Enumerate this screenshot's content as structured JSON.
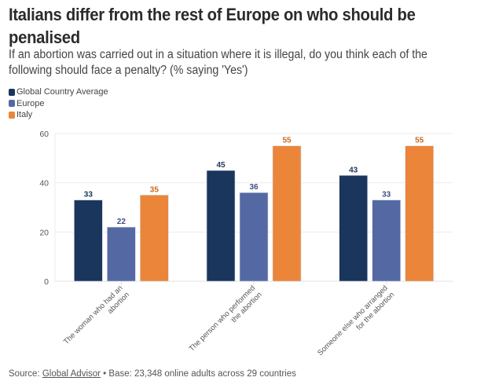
{
  "title": "Italians differ from the rest of Europe on who should be penalised",
  "subtitle": "If an abortion was carried out in a situation where it is illegal, do you think each of the following should face a penalty? (% saying 'Yes')",
  "footer": {
    "source_prefix": "Source: ",
    "source_link": "Global Advisor",
    "base_text": " • Base: 23,348 online adults across 29 countries"
  },
  "chart_data": {
    "type": "bar",
    "title": "Italians differ from the rest of Europe on who should be penalised",
    "xlabel": "",
    "ylabel": "",
    "ylim": [
      0,
      60
    ],
    "yticks": [
      0,
      20,
      40,
      60
    ],
    "grid": true,
    "legend_position": "top-left",
    "categories": [
      [
        "The woman who had an",
        "abortion"
      ],
      [
        "The person who performed",
        "the abortion"
      ],
      [
        "Someone else who arranged",
        "for the abortion"
      ]
    ],
    "series": [
      {
        "name": "Global Country Average",
        "color": "#1b365d",
        "label_color": "#1b365d",
        "values": [
          33,
          45,
          43
        ]
      },
      {
        "name": "Europe",
        "color": "#5469a4",
        "label_color": "#3e4f86",
        "values": [
          22,
          36,
          33
        ]
      },
      {
        "name": "Italy",
        "color": "#eb853a",
        "label_color": "#c9691f",
        "values": [
          35,
          55,
          55
        ]
      }
    ]
  }
}
